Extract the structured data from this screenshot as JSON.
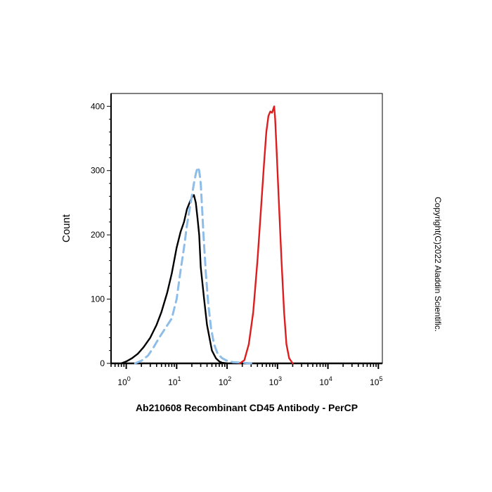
{
  "chart_data": {
    "type": "line",
    "title": "Ab210608 Recombinant CD45 Antibody - PerCP",
    "xlabel": "",
    "ylabel": "Count",
    "x_scale": "log",
    "xlim": [
      0.5,
      120000
    ],
    "ylim": [
      0,
      420
    ],
    "yticks": [
      0,
      100,
      200,
      300,
      400
    ],
    "ytick_labels": [
      "0",
      "100",
      "200",
      "300",
      "400"
    ],
    "xticks": [
      1,
      10,
      100,
      1000,
      10000,
      100000
    ],
    "xtick_labels": [
      {
        "base": "10",
        "exp": "0"
      },
      {
        "base": "10",
        "exp": "1"
      },
      {
        "base": "10",
        "exp": "2"
      },
      {
        "base": "10",
        "exp": "3"
      },
      {
        "base": "10",
        "exp": "4"
      },
      {
        "base": "10",
        "exp": "5"
      }
    ],
    "grid": false,
    "series": [
      {
        "color": "#000000",
        "style": "solid",
        "x": [
          0.8,
          1.0,
          1.3,
          1.7,
          2.2,
          3.0,
          4.0,
          5.0,
          6.5,
          8.0,
          10,
          12,
          14,
          16,
          18,
          20,
          22,
          24,
          26,
          28,
          30,
          35,
          40,
          50,
          60,
          70,
          80,
          100
        ],
        "y": [
          0,
          3,
          8,
          15,
          25,
          40,
          60,
          80,
          110,
          140,
          180,
          205,
          220,
          240,
          250,
          258,
          262,
          250,
          225,
          200,
          150,
          100,
          60,
          20,
          8,
          3,
          1,
          0
        ]
      },
      {
        "color": "#8DBDE8",
        "style": "dashed",
        "x": [
          1.5,
          2.0,
          2.7,
          3.5,
          4.5,
          6.0,
          8.0,
          10,
          12,
          14,
          16,
          18,
          20,
          22,
          24,
          26,
          28,
          30,
          32,
          34,
          38,
          42,
          48,
          55,
          65,
          80,
          100,
          130,
          200,
          300
        ],
        "y": [
          0,
          4,
          12,
          25,
          40,
          55,
          70,
          100,
          145,
          180,
          215,
          240,
          260,
          280,
          295,
          305,
          300,
          280,
          240,
          200,
          140,
          95,
          55,
          30,
          15,
          8,
          4,
          2,
          1,
          0
        ]
      },
      {
        "color": "#DC1E1E",
        "style": "solid",
        "x": [
          180,
          220,
          270,
          330,
          400,
          470,
          540,
          600,
          660,
          720,
          780,
          820,
          860,
          900,
          950,
          1050,
          1200,
          1350,
          1500,
          1700,
          2000
        ],
        "y": [
          0,
          5,
          30,
          80,
          160,
          240,
          310,
          360,
          385,
          392,
          390,
          395,
          400,
          380,
          340,
          260,
          160,
          80,
          30,
          8,
          0
        ]
      }
    ]
  },
  "watermark": "Copyright(C)2022 Aladdin Scientific."
}
